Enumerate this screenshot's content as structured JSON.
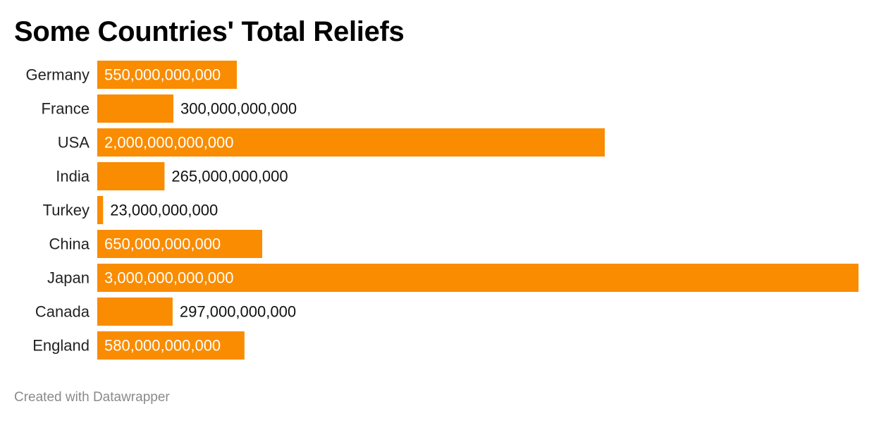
{
  "chart_data": {
    "type": "bar",
    "orientation": "horizontal",
    "title": "Some Countries' Total Reliefs",
    "categories": [
      "Germany",
      "France",
      "USA",
      "India",
      "Turkey",
      "China",
      "Japan",
      "Canada",
      "England"
    ],
    "values": [
      550000000000,
      300000000000,
      2000000000000,
      265000000000,
      23000000000,
      650000000000,
      3000000000000,
      297000000000,
      580000000000
    ],
    "value_labels": [
      "550,000,000,000",
      "300,000,000,000",
      "2,000,000,000,000",
      "265,000,000,000",
      "23,000,000,000",
      "650,000,000,000",
      "3,000,000,000,000",
      "297,000,000,000",
      "580,000,000,000"
    ],
    "xlim": [
      0,
      3000000000000
    ],
    "grid": false,
    "legend": "none",
    "bar_color": "#f98c00",
    "label_inside_color": "#ffffff",
    "label_outside_color": "#111111"
  },
  "footer": {
    "credit": "Created with Datawrapper"
  }
}
